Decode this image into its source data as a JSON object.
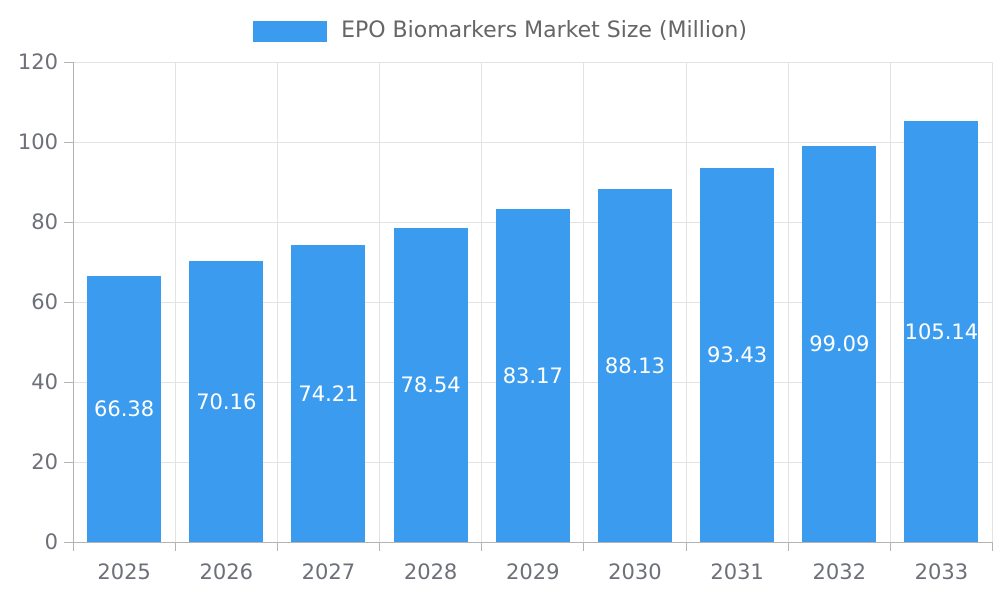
{
  "legend": {
    "label": "EPO Biomarkers Market Size (Million)"
  },
  "colors": {
    "bar": "#3B9CEF",
    "legend_text": "#666666",
    "axis_text": "#6E7079",
    "grid_line": "#E3E3E3",
    "axis_line": "#B3B3B3",
    "value_label": "#FFFFFF",
    "background": "#FFFFFF"
  },
  "chart_data": {
    "type": "bar",
    "title": "EPO Biomarkers Market Size (Million)",
    "categories": [
      "2025",
      "2026",
      "2027",
      "2028",
      "2029",
      "2030",
      "2031",
      "2032",
      "2033"
    ],
    "series": [
      {
        "name": "EPO Biomarkers Market Size (Million)",
        "values": [
          66.38,
          70.16,
          74.21,
          78.54,
          83.17,
          88.13,
          93.43,
          99.09,
          105.14
        ]
      }
    ],
    "value_label_decimals": 2,
    "value_label_position": "inside-center",
    "xlabel": "",
    "ylabel": "",
    "ylim": [
      0,
      120
    ],
    "yticks": [
      0,
      20,
      40,
      60,
      80,
      100,
      120
    ],
    "grid": true,
    "legend_position": "top-center"
  }
}
